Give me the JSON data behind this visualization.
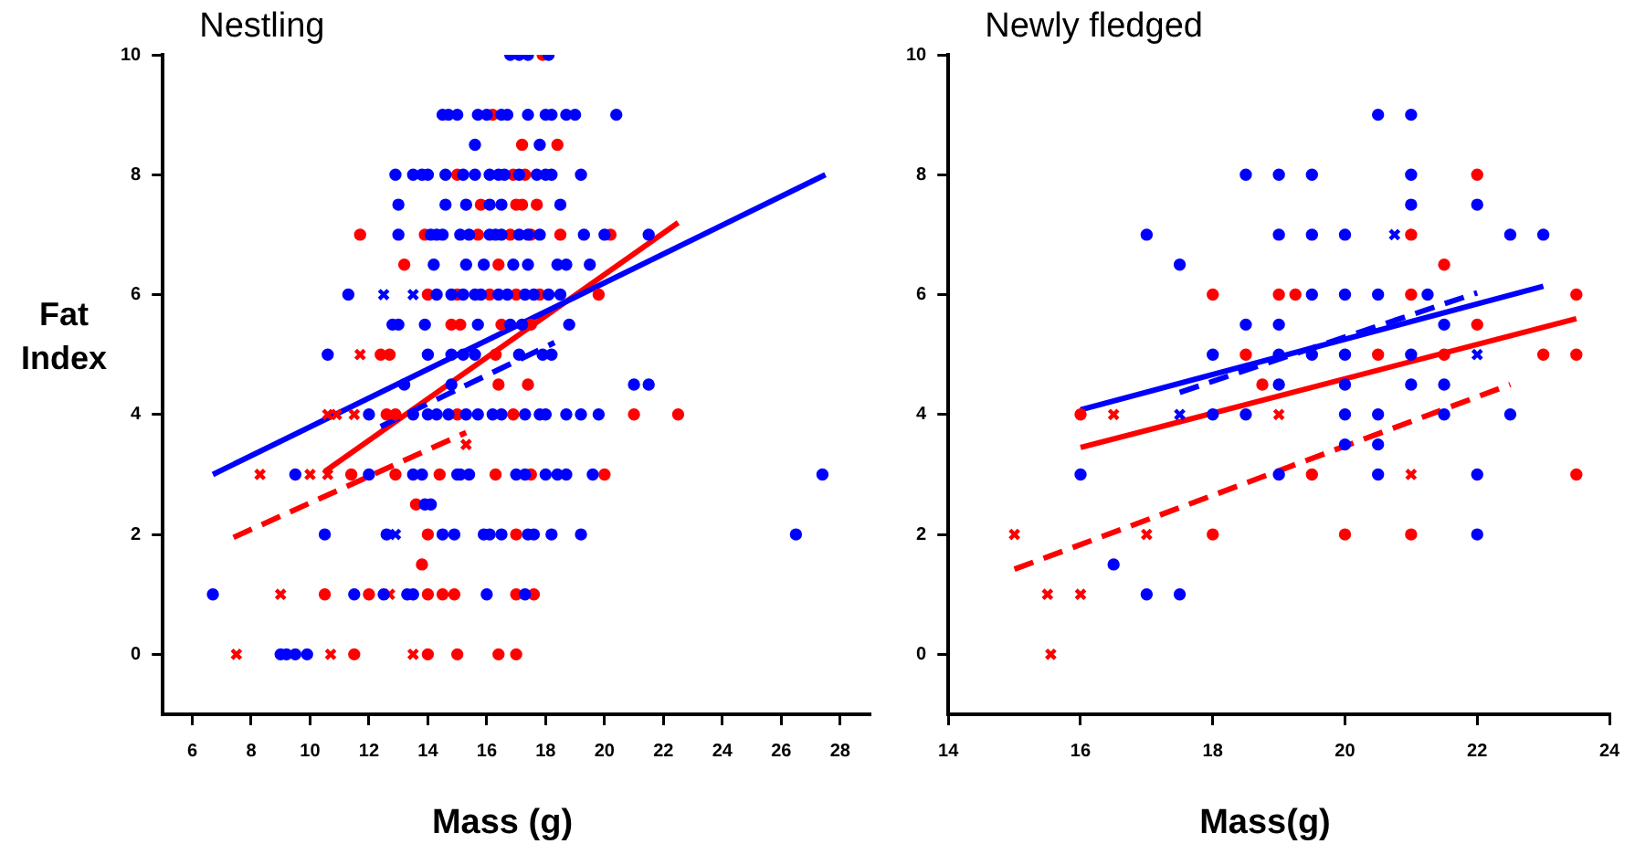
{
  "chart_data": [
    {
      "type": "scatter",
      "title": "Nestling",
      "xlabel": "Mass (g)",
      "ylabel": "Fat Index",
      "xlim": [
        5,
        29
      ],
      "ylim": [
        -1,
        10
      ],
      "xticks": [
        6,
        8,
        10,
        12,
        14,
        16,
        18,
        20,
        22,
        24,
        26,
        28
      ],
      "yticks": [
        0,
        2,
        4,
        6,
        8,
        10
      ],
      "grid": false,
      "legend": false,
      "series": [
        {
          "type": "scatter",
          "marker": "circle",
          "color": "#0000ff",
          "x": [
            16.8,
            17.1,
            17.4,
            18.1,
            14.5,
            14.7,
            15.0,
            15.7,
            16.0,
            16.5,
            16.7,
            17.4,
            18.0,
            18.2,
            18.7,
            19.0,
            20.4,
            15.6,
            17.8,
            12.9,
            13.5,
            13.8,
            14.0,
            14.6,
            15.2,
            15.6,
            16.1,
            16.4,
            16.6,
            17.1,
            17.7,
            18.0,
            18.2,
            19.2,
            13.0,
            14.6,
            15.3,
            16.1,
            16.5,
            18.5,
            13.0,
            14.1,
            14.3,
            14.5,
            15.1,
            15.4,
            16.1,
            16.3,
            16.5,
            17.1,
            17.4,
            17.8,
            19.3,
            20.0,
            21.5,
            14.2,
            15.3,
            15.9,
            16.9,
            17.4,
            18.4,
            18.7,
            19.5,
            11.3,
            14.3,
            14.8,
            15.2,
            15.6,
            15.8,
            16.4,
            16.7,
            17.3,
            17.6,
            18.1,
            18.5,
            12.8,
            13.0,
            13.9,
            15.7,
            16.8,
            17.2,
            18.8,
            10.6,
            14.0,
            14.8,
            15.2,
            15.6,
            17.1,
            17.9,
            18.2,
            13.2,
            14.8,
            21.0,
            21.5,
            12.0,
            13.5,
            14.0,
            14.3,
            14.7,
            15.3,
            15.7,
            16.2,
            16.5,
            17.3,
            17.8,
            18.0,
            18.7,
            19.2,
            19.8,
            9.5,
            12.0,
            13.5,
            13.8,
            15.0,
            15.1,
            15.4,
            17.0,
            17.3,
            18.0,
            18.4,
            18.7,
            19.6,
            27.4,
            13.9,
            14.1,
            10.5,
            12.6,
            14.5,
            14.9,
            15.9,
            16.1,
            16.5,
            17.4,
            17.6,
            18.2,
            19.2,
            26.5,
            6.7,
            11.5,
            12.5,
            13.3,
            13.5,
            16.0,
            17.3,
            9.0,
            9.2,
            9.5,
            9.9
          ],
          "values": [
            10,
            10,
            10,
            10,
            9,
            9,
            9,
            9,
            9,
            9,
            9,
            9,
            9,
            9,
            9,
            9,
            9,
            8.5,
            8.5,
            8,
            8,
            8,
            8,
            8,
            8,
            8,
            8,
            8,
            8,
            8,
            8,
            8,
            8,
            8,
            7.5,
            7.5,
            7.5,
            7.5,
            7.5,
            7.5,
            7,
            7,
            7,
            7,
            7,
            7,
            7,
            7,
            7,
            7,
            7,
            7,
            7,
            7,
            7,
            6.5,
            6.5,
            6.5,
            6.5,
            6.5,
            6.5,
            6.5,
            6.5,
            6,
            6,
            6,
            6,
            6,
            6,
            6,
            6,
            6,
            6,
            6,
            6,
            5.5,
            5.5,
            5.5,
            5.5,
            5.5,
            5.5,
            5.5,
            5,
            5,
            5,
            5,
            5,
            5,
            5,
            5,
            4.5,
            4.5,
            4.5,
            4.5,
            4,
            4,
            4,
            4,
            4,
            4,
            4,
            4,
            4,
            4,
            4,
            4,
            4,
            4,
            4,
            3,
            3,
            3,
            3,
            3,
            3,
            3,
            3,
            3,
            3,
            3,
            3,
            3,
            3,
            2.5,
            2.5,
            2,
            2,
            2,
            2,
            2,
            2,
            2,
            2,
            2,
            2,
            2,
            2,
            1,
            1,
            1,
            1,
            1,
            1,
            1,
            0,
            0,
            0,
            0
          ]
        },
        {
          "type": "scatter",
          "marker": "cross",
          "color": "#0000ff",
          "x": [
            12.5,
            13.5,
            12.9
          ],
          "values": [
            6,
            6,
            2
          ]
        },
        {
          "type": "scatter",
          "marker": "circle",
          "color": "#ff0000",
          "x": [
            17.9,
            16.2,
            17.2,
            18.4,
            15.0,
            16.9,
            17.3,
            15.8,
            17.0,
            17.2,
            17.7,
            11.7,
            13.9,
            15.7,
            16.8,
            17.5,
            18.5,
            20.2,
            13.2,
            16.4,
            14.0,
            15.0,
            16.1,
            17.0,
            17.8,
            19.8,
            14.8,
            15.1,
            16.5,
            17.5,
            12.4,
            12.7,
            16.3,
            16.4,
            17.4,
            12.6,
            12.9,
            15.0,
            16.9,
            21.0,
            22.5,
            11.4,
            12.9,
            14.4,
            16.3,
            17.5,
            20.0,
            13.6,
            14.0,
            17.0,
            13.8,
            10.5,
            12.0,
            14.0,
            14.5,
            14.9,
            17.0,
            17.6,
            11.5,
            14.0,
            15.0,
            16.4,
            17.0
          ],
          "values": [
            10,
            9,
            8.5,
            8.5,
            8,
            8,
            8,
            7.5,
            7.5,
            7.5,
            7.5,
            7,
            7,
            7,
            7,
            7,
            7,
            7,
            6.5,
            6.5,
            6,
            6,
            6,
            6,
            6,
            6,
            5.5,
            5.5,
            5.5,
            5.5,
            5,
            5,
            5,
            4.5,
            4.5,
            4,
            4,
            4,
            4,
            4,
            4,
            3,
            3,
            3,
            3,
            3,
            3,
            2.5,
            2,
            2,
            1.5,
            1,
            1,
            1,
            1,
            1,
            1,
            1,
            0,
            0,
            0,
            0,
            0
          ]
        },
        {
          "type": "scatter",
          "marker": "cross",
          "color": "#ff0000",
          "x": [
            11.7,
            10.6,
            10.9,
            11.5,
            15.3,
            8.3,
            10.0,
            10.6,
            9.0,
            12.7,
            7.5,
            10.7,
            13.5
          ],
          "values": [
            5,
            4,
            4,
            4,
            3.5,
            3,
            3,
            3,
            1,
            1,
            0,
            0,
            0
          ]
        },
        {
          "type": "line",
          "marker": "none",
          "line_style": "solid",
          "color": "#0000ff",
          "x": [
            6.7,
            27.5
          ],
          "values": [
            3.0,
            8.0
          ]
        },
        {
          "type": "line",
          "marker": "none",
          "line_style": "dashed",
          "color": "#0000ff",
          "x": [
            12.4,
            18.3
          ],
          "values": [
            3.8,
            5.2
          ]
        },
        {
          "type": "line",
          "marker": "none",
          "line_style": "solid",
          "color": "#ff0000",
          "x": [
            10.5,
            22.5
          ],
          "values": [
            3.05,
            7.2
          ]
        },
        {
          "type": "line",
          "marker": "none",
          "line_style": "dashed",
          "color": "#ff0000",
          "x": [
            7.4,
            15.3
          ],
          "values": [
            1.95,
            3.7
          ]
        }
      ]
    },
    {
      "type": "scatter",
      "title": "Newly fledged",
      "xlabel": "Mass(g)",
      "xlim": [
        14,
        24
      ],
      "ylim": [
        -1,
        10
      ],
      "xticks": [
        14,
        16,
        18,
        20,
        22,
        24
      ],
      "yticks": [
        0,
        2,
        4,
        6,
        8,
        10
      ],
      "grid": false,
      "legend": false,
      "series": [
        {
          "type": "scatter",
          "marker": "circle",
          "color": "#0000ff",
          "x": [
            16,
            16.5,
            17,
            17,
            17.5,
            17.5,
            18,
            18,
            18.5,
            18.5,
            18.5,
            19,
            19.5,
            19,
            19.5,
            20,
            22.5,
            23,
            20.5,
            21,
            21,
            21,
            22,
            19.5,
            20,
            20.5,
            21.25,
            19,
            21.5,
            19,
            19.5,
            20,
            21,
            19,
            20,
            21,
            21.5,
            20,
            20.5,
            21.5,
            22.5,
            20,
            20.5,
            19,
            20.5,
            22,
            22
          ],
          "values": [
            3,
            1.5,
            7,
            1,
            6.5,
            1,
            5,
            4,
            8,
            5.5,
            4,
            8,
            8,
            7,
            7,
            7,
            7,
            7,
            9,
            9,
            8,
            7.5,
            7.5,
            6,
            6,
            6,
            6,
            5.5,
            5.5,
            5,
            5,
            5,
            5,
            4.5,
            4.5,
            4.5,
            4.5,
            4,
            4,
            4,
            4,
            3.5,
            3.5,
            3,
            3,
            3,
            2
          ]
        },
        {
          "type": "scatter",
          "marker": "cross",
          "color": "#0000ff",
          "x": [
            17.5,
            20.75,
            22
          ],
          "values": [
            4,
            7,
            5
          ]
        },
        {
          "type": "scatter",
          "marker": "circle",
          "color": "#ff0000",
          "x": [
            16,
            18,
            18,
            18.5,
            18.75,
            21,
            22,
            21.5,
            19,
            19.25,
            21,
            23.5,
            22,
            20.5,
            21.5,
            23,
            23.5,
            19.5,
            23.5,
            20,
            21
          ],
          "values": [
            4,
            6,
            2,
            5,
            4.5,
            7,
            8,
            6.5,
            6,
            6,
            6,
            6,
            5.5,
            5,
            5,
            5,
            5,
            3,
            3,
            2,
            2
          ]
        },
        {
          "type": "scatter",
          "marker": "cross",
          "color": "#ff0000",
          "x": [
            15,
            15.5,
            15.55,
            16,
            16.5,
            17,
            19,
            21
          ],
          "values": [
            2,
            1,
            0,
            1,
            4,
            2,
            4,
            3
          ]
        },
        {
          "type": "line",
          "marker": "none",
          "line_style": "solid",
          "color": "#0000ff",
          "x": [
            16,
            23
          ],
          "values": [
            4.08,
            6.14
          ]
        },
        {
          "type": "line",
          "marker": "none",
          "line_style": "dashed",
          "color": "#0000ff",
          "x": [
            17.5,
            22
          ],
          "values": [
            4.37,
            6.03
          ]
        },
        {
          "type": "line",
          "marker": "none",
          "line_style": "solid",
          "color": "#ff0000",
          "x": [
            16,
            23.5
          ],
          "values": [
            3.45,
            5.6
          ]
        },
        {
          "type": "line",
          "marker": "none",
          "line_style": "dashed",
          "color": "#ff0000",
          "x": [
            15,
            22.5
          ],
          "values": [
            1.42,
            4.5
          ]
        }
      ]
    }
  ]
}
